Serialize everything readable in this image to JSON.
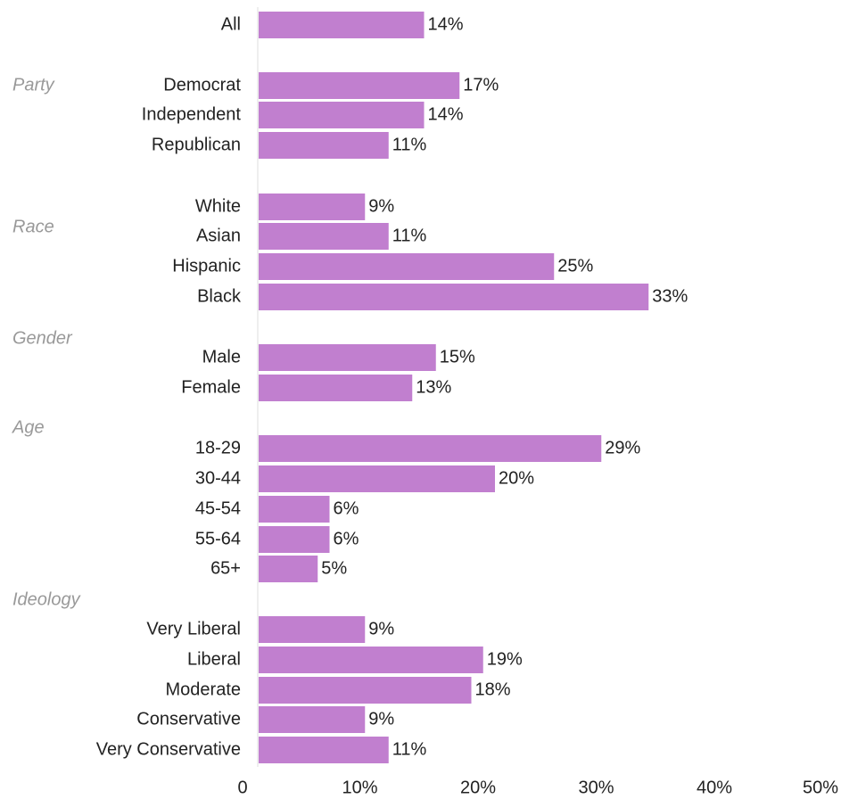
{
  "chart_data": {
    "type": "bar",
    "orientation": "horizontal",
    "bar_color": "#c17fcf",
    "xlim": [
      0,
      50
    ],
    "xticks": [
      "0",
      "10%",
      "20%",
      "30%",
      "40%",
      "50%"
    ],
    "grid": false,
    "groups": [
      {
        "name": "",
        "categories": [
          "All"
        ],
        "values": [
          14
        ],
        "labels": [
          "14%"
        ]
      },
      {
        "name": "Party",
        "categories": [
          "Democrat",
          "Independent",
          "Republican"
        ],
        "values": [
          17,
          14,
          11
        ],
        "labels": [
          "17%",
          "14%",
          "11%"
        ]
      },
      {
        "name": "Race",
        "categories": [
          "White",
          "Asian",
          "Hispanic",
          "Black"
        ],
        "values": [
          9,
          11,
          25,
          33
        ],
        "labels": [
          "9%",
          "11%",
          "25%",
          "33%"
        ]
      },
      {
        "name": "Gender",
        "categories": [
          "Male",
          "Female"
        ],
        "values": [
          15,
          13
        ],
        "labels": [
          "15%",
          "13%"
        ]
      },
      {
        "name": "Age",
        "categories": [
          "18-29",
          "30-44",
          "45-54",
          "55-64",
          "65+"
        ],
        "values": [
          29,
          20,
          6,
          6,
          5
        ],
        "labels": [
          "29%",
          "20%",
          "6%",
          "6%",
          "5%"
        ]
      },
      {
        "name": "Ideology",
        "categories": [
          "Very Liberal",
          "Liberal",
          "Moderate",
          "Conservative",
          "Very Conservative"
        ],
        "values": [
          9,
          19,
          18,
          9,
          11
        ],
        "labels": [
          "9%",
          "19%",
          "18%",
          "9%",
          "11%"
        ]
      }
    ]
  }
}
